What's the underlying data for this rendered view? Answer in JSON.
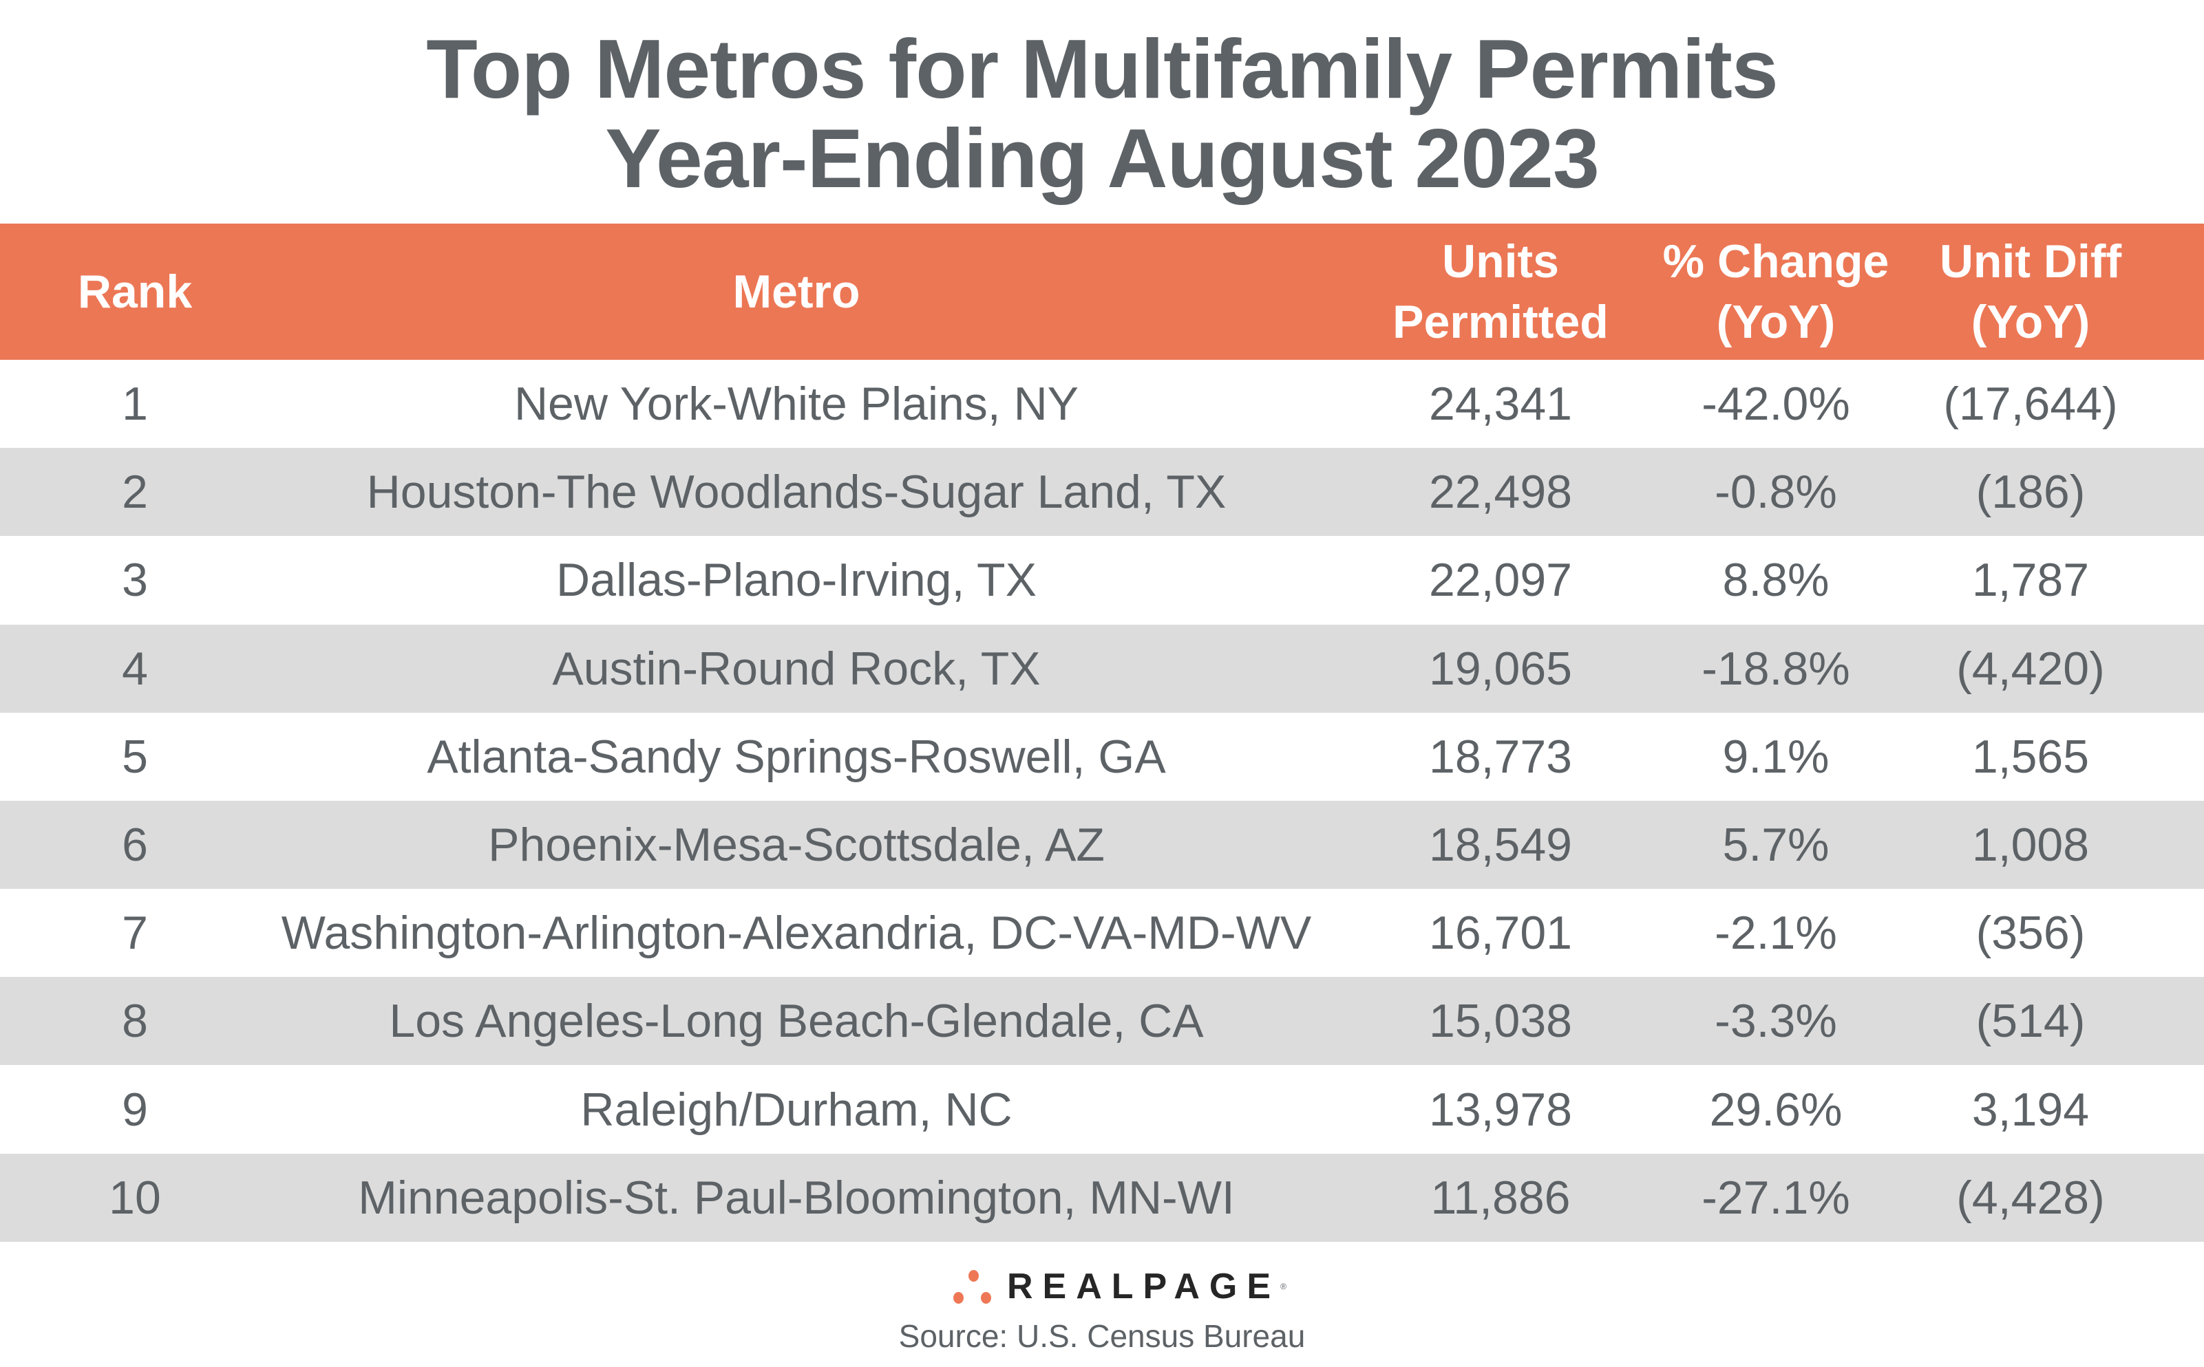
{
  "title": {
    "line1": "Top Metros for Multifamily Permits",
    "line2": "Year-Ending August 2023"
  },
  "colors": {
    "header_bg": "#ec7755",
    "alt_row": "#dcdcdc",
    "text": "#5d6266",
    "logo_dots": "#ee7855"
  },
  "columns": [
    {
      "line1": "Rank",
      "line2": ""
    },
    {
      "line1": "Metro",
      "line2": ""
    },
    {
      "line1": "Units",
      "line2": "Permitted"
    },
    {
      "line1": "% Change",
      "line2": "(YoY)"
    },
    {
      "line1": "Unit Diff",
      "line2": "(YoY)"
    }
  ],
  "rows": [
    [
      "1",
      "New York-White Plains, NY",
      "24,341",
      "-42.0%",
      "(17,644)"
    ],
    [
      "2",
      "Houston-The Woodlands-Sugar Land, TX",
      "22,498",
      "-0.8%",
      "(186)"
    ],
    [
      "3",
      "Dallas-Plano-Irving, TX",
      "22,097",
      "8.8%",
      "1,787"
    ],
    [
      "4",
      "Austin-Round Rock, TX",
      "19,065",
      "-18.8%",
      "(4,420)"
    ],
    [
      "5",
      "Atlanta-Sandy Springs-Roswell, GA",
      "18,773",
      "9.1%",
      "1,565"
    ],
    [
      "6",
      "Phoenix-Mesa-Scottsdale, AZ",
      "18,549",
      "5.7%",
      "1,008"
    ],
    [
      "7",
      "Washington-Arlington-Alexandria, DC-VA-MD-WV",
      "16,701",
      "-2.1%",
      "(356)"
    ],
    [
      "8",
      "Los Angeles-Long Beach-Glendale, CA",
      "15,038",
      "-3.3%",
      "(514)"
    ],
    [
      "9",
      "Raleigh/Durham, NC",
      "13,978",
      "29.6%",
      "3,194"
    ],
    [
      "10",
      "Minneapolis-St. Paul-Bloomington, MN-WI",
      "11,886",
      "-27.1%",
      "(4,428)"
    ]
  ],
  "logo": {
    "text": "REALPAGE",
    "mark": "®"
  },
  "source": "Source: U.S. Census Bureau"
}
